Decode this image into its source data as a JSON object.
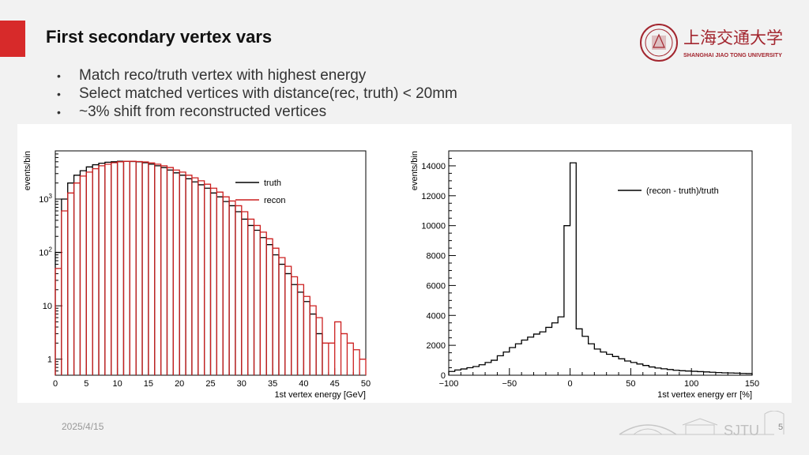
{
  "slide": {
    "title": "First secondary vertex vars",
    "bullets": [
      "Match reco/truth vertex with highest energy",
      "Select matched vertices with distance(rec, truth) < 20mm",
      "~3% shift from reconstructed vertices"
    ],
    "date": "2025/4/15",
    "page_number": "5",
    "logo": {
      "chinese": "上海交通大学",
      "english": "SHANGHAI JIAO TONG UNIVERSITY"
    },
    "footer_logo_text": "SJTU",
    "colors": {
      "accent": "#d72a2a",
      "truth": "#000000",
      "recon": "#cc1f1f"
    }
  },
  "chart_data": [
    {
      "type": "histogram",
      "scale": "log",
      "xlabel": "1st vertex energy [GeV]",
      "ylabel": "events/bin",
      "xlim": [
        0,
        50
      ],
      "ylim": [
        0.5,
        8000
      ],
      "x_ticks": [
        "0",
        "5",
        "10",
        "15",
        "20",
        "25",
        "30",
        "35",
        "40",
        "45",
        "50"
      ],
      "y_ticks": [
        {
          "label": "1",
          "value": 1
        },
        {
          "label": "10",
          "value": 10
        },
        {
          "label": "10",
          "sup": "2",
          "value": 100
        },
        {
          "label": "10",
          "sup": "3",
          "value": 1000
        }
      ],
      "bin_width": 1,
      "legend": [
        "truth",
        "recon"
      ],
      "legend_position": "top-right",
      "series": [
        {
          "name": "truth",
          "color": "#000000",
          "values": [
            100,
            1000,
            2000,
            2800,
            3400,
            4000,
            4400,
            4700,
            4900,
            5000,
            5100,
            5100,
            5050,
            5000,
            4800,
            4500,
            4200,
            3900,
            3500,
            3100,
            2800,
            2400,
            2100,
            1850,
            1600,
            1300,
            1100,
            900,
            750,
            580,
            420,
            320,
            260,
            190,
            140,
            90,
            60,
            40,
            25,
            18,
            12,
            7,
            3,
            0,
            0,
            0,
            0,
            0,
            0,
            0
          ]
        },
        {
          "name": "recon",
          "color": "#cc1f1f",
          "values": [
            50,
            600,
            1300,
            2000,
            2700,
            3200,
            3700,
            4200,
            4500,
            4800,
            5000,
            5100,
            5100,
            5050,
            4950,
            4750,
            4500,
            4200,
            3900,
            3500,
            3200,
            2800,
            2500,
            2200,
            1900,
            1600,
            1350,
            1100,
            920,
            750,
            580,
            420,
            320,
            240,
            180,
            120,
            80,
            55,
            35,
            25,
            15,
            10,
            6,
            2,
            2,
            5,
            3,
            2,
            1.5,
            1
          ]
        }
      ]
    },
    {
      "type": "histogram",
      "scale": "linear",
      "xlabel": "1st vertex energy err [%]",
      "ylabel": "events/bin",
      "xlim": [
        -100,
        150
      ],
      "ylim": [
        0,
        15000
      ],
      "x_ticks": [
        {
          "label": "−100",
          "value": -100
        },
        {
          "label": "−50",
          "value": -50
        },
        {
          "label": "0",
          "value": 0
        },
        {
          "label": "50",
          "value": 50
        },
        {
          "label": "100",
          "value": 100
        },
        {
          "label": "150",
          "value": 150
        }
      ],
      "y_ticks": [
        0,
        2000,
        4000,
        6000,
        8000,
        10000,
        12000,
        14000
      ],
      "bin_start": -100,
      "bin_width": 5,
      "legend": [
        "(recon - truth)/truth"
      ],
      "legend_position": "top-right",
      "series": [
        {
          "name": "(recon - truth)/truth",
          "color": "#000000",
          "values": [
            250,
            350,
            420,
            500,
            580,
            700,
            850,
            1000,
            1300,
            1550,
            1850,
            2100,
            2350,
            2550,
            2750,
            2900,
            3200,
            3500,
            3900,
            10000,
            14200,
            3100,
            2600,
            2100,
            1750,
            1550,
            1400,
            1250,
            1100,
            950,
            850,
            750,
            650,
            550,
            480,
            430,
            380,
            330,
            300,
            280,
            260,
            240,
            220,
            200,
            180,
            160,
            150,
            140,
            120,
            110
          ]
        }
      ]
    }
  ]
}
